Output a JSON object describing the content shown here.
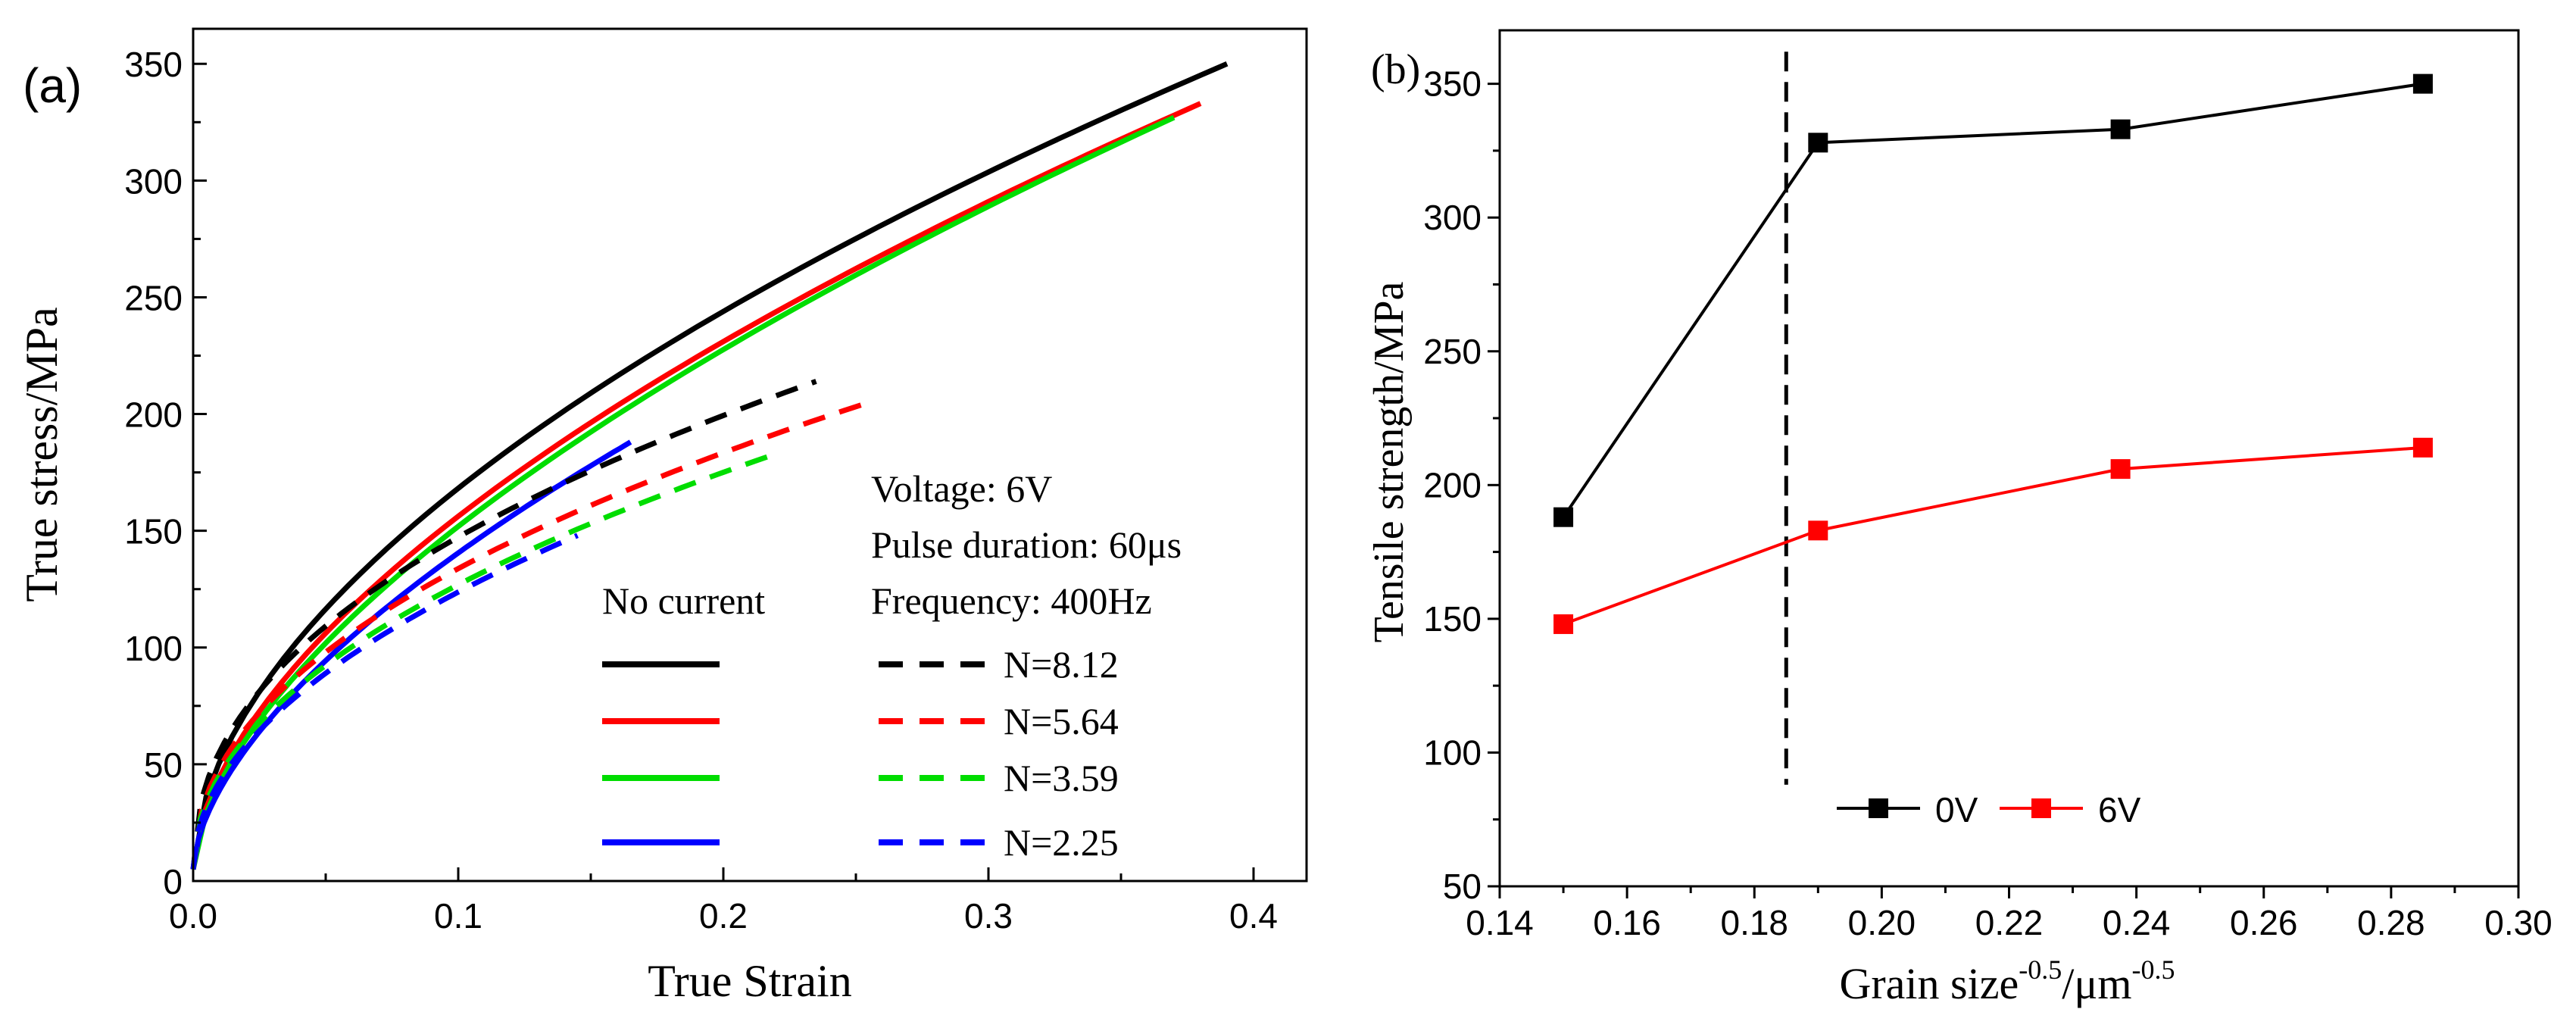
{
  "chart_data": [
    {
      "type": "line",
      "panel_label": "(a)",
      "xlabel": "True Strain",
      "ylabel": "True stress/MPa",
      "xlim": [
        0,
        0.42
      ],
      "ylim": [
        0,
        365
      ],
      "xticks": [
        0.0,
        0.1,
        0.2,
        0.3,
        0.4
      ],
      "xtick_labels": [
        "0.0",
        "0.1",
        "0.2",
        "0.3",
        "0.4"
      ],
      "yticks": [
        0,
        50,
        100,
        150,
        200,
        250,
        300,
        350
      ],
      "ytick_labels": [
        "0",
        "50",
        "100",
        "150",
        "200",
        "250",
        "300",
        "350"
      ],
      "legend": {
        "position": "lower-right",
        "solid_header": "No current",
        "info_lines": [
          "Voltage: 6V",
          "Pulse duration: 60μs",
          "Frequency: 400Hz"
        ],
        "dashed_labels": [
          "N=8.12",
          "N=5.64",
          "N=3.59",
          "N=2.25"
        ]
      },
      "series": [
        {
          "name": "No current N=8.12",
          "color": "#000000",
          "style": "solid",
          "end_strain": 0.39,
          "end_stress": 350,
          "exponent": 0.55
        },
        {
          "name": "No current N=5.64",
          "color": "#ff0000",
          "style": "solid",
          "end_strain": 0.38,
          "end_stress": 333,
          "exponent": 0.58
        },
        {
          "name": "No current N=3.59",
          "color": "#00dd00",
          "style": "solid",
          "end_strain": 0.37,
          "end_stress": 327,
          "exponent": 0.6
        },
        {
          "name": "No current N=2.25",
          "color": "#0000ff",
          "style": "solid",
          "end_strain": 0.165,
          "end_stress": 188,
          "exponent": 0.6
        },
        {
          "name": "N=8.12",
          "color": "#000000",
          "style": "dashed",
          "end_strain": 0.235,
          "end_stress": 214,
          "exponent": 0.45
        },
        {
          "name": "N=5.64",
          "color": "#ff0000",
          "style": "dashed",
          "end_strain": 0.255,
          "end_stress": 205,
          "exponent": 0.47
        },
        {
          "name": "N=3.59",
          "color": "#00dd00",
          "style": "dashed",
          "end_strain": 0.22,
          "end_stress": 183,
          "exponent": 0.48
        },
        {
          "name": "N=2.25",
          "color": "#0000ff",
          "style": "dashed",
          "end_strain": 0.145,
          "end_stress": 148,
          "exponent": 0.5
        }
      ]
    },
    {
      "type": "line",
      "panel_label": "(b)",
      "xlabel": "Grain size",
      "xlabel_sup1": "-0.5",
      "xlabel_mid": "/μm",
      "xlabel_sup2": "-0.5",
      "ylabel": "Tensile strength/MPa",
      "xlim": [
        0.14,
        0.3
      ],
      "ylim": [
        50,
        370
      ],
      "xticks": [
        0.14,
        0.16,
        0.18,
        0.2,
        0.22,
        0.24,
        0.26,
        0.28,
        0.3
      ],
      "xtick_labels": [
        "0.14",
        "0.16",
        "0.18",
        "0.20",
        "0.22",
        "0.24",
        "0.26",
        "0.28",
        "0.30"
      ],
      "yticks": [
        50,
        100,
        150,
        200,
        250,
        300,
        350
      ],
      "ytick_labels": [
        "50",
        "100",
        "150",
        "200",
        "250",
        "300",
        "350"
      ],
      "vline": {
        "x": 0.185,
        "y_range": [
          88,
          362
        ],
        "style": "dashed"
      },
      "legend": {
        "position": "bottom-center"
      },
      "series": [
        {
          "name": "0V",
          "color": "#000000",
          "x": [
            0.15,
            0.19,
            0.2375,
            0.285
          ],
          "y": [
            188,
            328,
            333,
            350
          ]
        },
        {
          "name": "6V",
          "color": "#ff0000",
          "x": [
            0.15,
            0.19,
            0.2375,
            0.285
          ],
          "y": [
            148,
            183,
            206,
            214
          ]
        }
      ]
    }
  ]
}
